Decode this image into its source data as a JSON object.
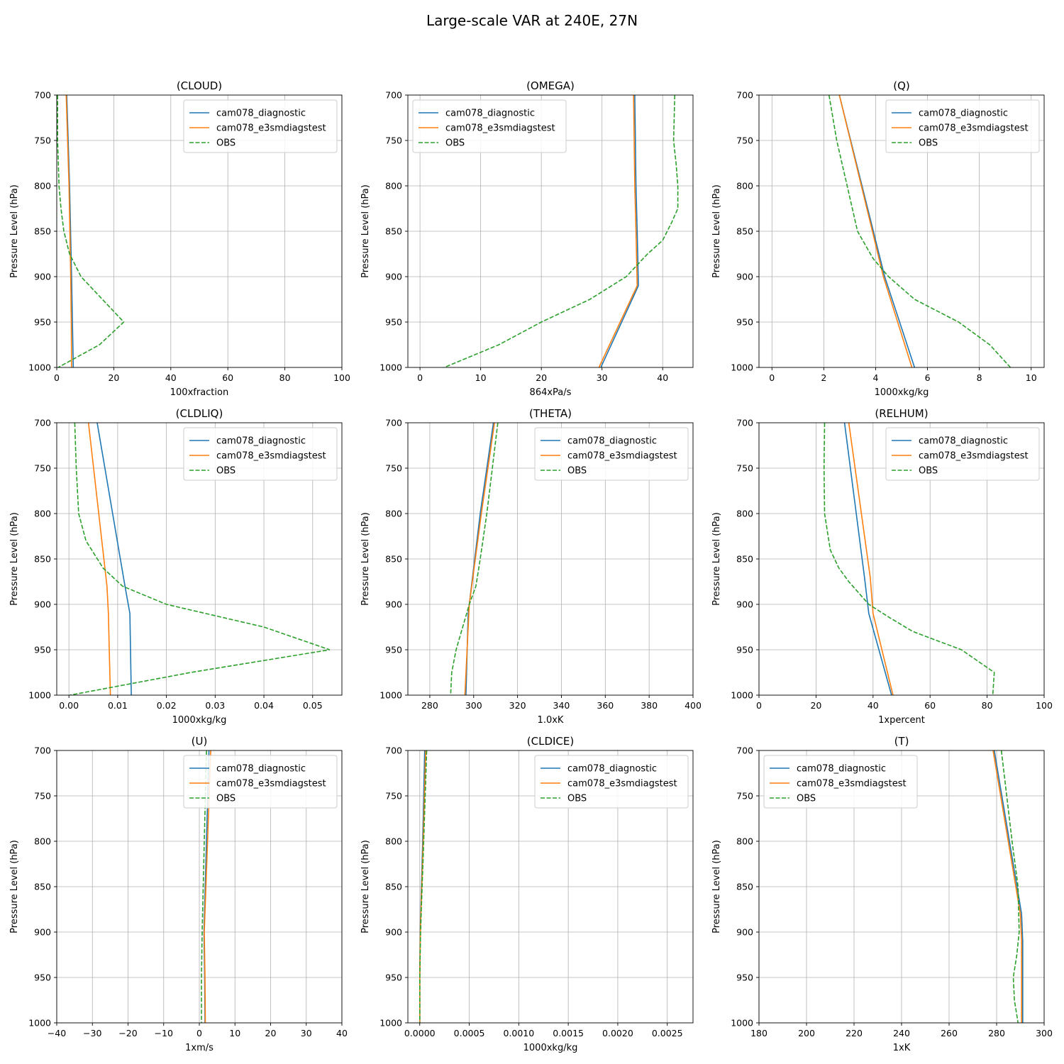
{
  "figure_title": "Large-scale VAR at 240E, 27N",
  "ylabel": "Pressure Level (hPa)",
  "ylim": [
    1000,
    700
  ],
  "yticks": [
    700,
    750,
    800,
    850,
    900,
    950,
    1000
  ],
  "series_styles": [
    {
      "name": "cam078_diagnostic",
      "color": "#1f77b4",
      "dash": "solid"
    },
    {
      "name": "cam078_e3smdiagstest",
      "color": "#ff7f0e",
      "dash": "solid"
    },
    {
      "name": "OBS",
      "color": "#2ca02c",
      "dash": "dashed"
    }
  ],
  "chart_data": [
    {
      "type": "line",
      "title": "(CLOUD)",
      "xlabel": "100xfraction",
      "ylabel": "Pressure Level (hPa)",
      "xlim": [
        0,
        100
      ],
      "xticks": [
        0,
        20,
        40,
        60,
        80,
        100
      ],
      "xticklabels": [
        "0",
        "20",
        "40",
        "60",
        "80",
        "100"
      ],
      "legend": "top-right",
      "grid": true,
      "series": [
        {
          "name": "cam078_diagnostic",
          "points": [
            [
              3.5,
              700
            ],
            [
              4.5,
              800
            ],
            [
              5.2,
              900
            ],
            [
              5.5,
              950
            ],
            [
              5.8,
              1000
            ]
          ]
        },
        {
          "name": "cam078_e3smdiagstest",
          "points": [
            [
              3.3,
              700
            ],
            [
              4.3,
              800
            ],
            [
              4.9,
              900
            ],
            [
              5.1,
              950
            ],
            [
              5.2,
              1000
            ]
          ]
        },
        {
          "name": "OBS",
          "points": [
            [
              0.3,
              700
            ],
            [
              0.3,
              750
            ],
            [
              0.8,
              800
            ],
            [
              1.5,
              825
            ],
            [
              2.5,
              850
            ],
            [
              4.5,
              875
            ],
            [
              8.5,
              900
            ],
            [
              16,
              925
            ],
            [
              23.5,
              950
            ],
            [
              15,
              975
            ],
            [
              0.5,
              1000
            ]
          ]
        }
      ]
    },
    {
      "type": "line",
      "title": "(OMEGA)",
      "xlabel": "864xPa/s",
      "ylabel": "Pressure Level (hPa)",
      "xlim": [
        -2,
        45
      ],
      "xticks": [
        0,
        10,
        20,
        30,
        40
      ],
      "xticklabels": [
        "0",
        "10",
        "20",
        "30",
        "40"
      ],
      "legend": "top-left",
      "grid": true,
      "series": [
        {
          "name": "cam078_diagnostic",
          "points": [
            [
              35.4,
              700
            ],
            [
              35.6,
              800
            ],
            [
              35.8,
              850
            ],
            [
              36.0,
              910
            ],
            [
              29.8,
              1000
            ]
          ]
        },
        {
          "name": "cam078_e3smdiagstest",
          "points": [
            [
              35.2,
              700
            ],
            [
              35.4,
              800
            ],
            [
              35.6,
              850
            ],
            [
              35.8,
              910
            ],
            [
              29.5,
              1000
            ]
          ]
        },
        {
          "name": "OBS",
          "points": [
            [
              42,
              700
            ],
            [
              41.8,
              750
            ],
            [
              42.2,
              775
            ],
            [
              42.5,
              800
            ],
            [
              42.5,
              825
            ],
            [
              41.5,
              840
            ],
            [
              40,
              860
            ],
            [
              37.5,
              875
            ],
            [
              34,
              900
            ],
            [
              28,
              925
            ],
            [
              20,
              950
            ],
            [
              13,
              975
            ],
            [
              4,
              1000
            ]
          ]
        }
      ]
    },
    {
      "type": "line",
      "title": "(Q)",
      "xlabel": "1000xkg/kg",
      "ylabel": "Pressure Level (hPa)",
      "xlim": [
        -0.5,
        10.5
      ],
      "xticks": [
        0,
        2,
        4,
        6,
        8,
        10
      ],
      "xticklabels": [
        "0",
        "2",
        "4",
        "6",
        "8",
        "10"
      ],
      "legend": "top-right",
      "grid": true,
      "series": [
        {
          "name": "cam078_diagnostic",
          "points": [
            [
              2.6,
              700
            ],
            [
              4.35,
              900
            ],
            [
              5.5,
              1000
            ]
          ]
        },
        {
          "name": "cam078_e3smdiagstest",
          "points": [
            [
              2.6,
              700
            ],
            [
              4.3,
              900
            ],
            [
              5.4,
              1000
            ]
          ]
        },
        {
          "name": "OBS",
          "points": [
            [
              2.2,
              700
            ],
            [
              2.5,
              750
            ],
            [
              2.9,
              800
            ],
            [
              3.3,
              850
            ],
            [
              3.9,
              880
            ],
            [
              4.5,
              900
            ],
            [
              5.5,
              925
            ],
            [
              7.2,
              950
            ],
            [
              8.4,
              975
            ],
            [
              9.2,
              1000
            ]
          ]
        }
      ]
    },
    {
      "type": "line",
      "title": "(CLDLIQ)",
      "xlabel": "1000xkg/kg",
      "ylabel": "Pressure Level (hPa)",
      "xlim": [
        -0.0025,
        0.056
      ],
      "xticks": [
        0,
        0.01,
        0.02,
        0.03,
        0.04,
        0.05
      ],
      "xticklabels": [
        "0.00",
        "0.01",
        "0.02",
        "0.03",
        "0.04",
        "0.05"
      ],
      "legend": "top-right",
      "grid": true,
      "series": [
        {
          "name": "cam078_diagnostic",
          "points": [
            [
              0.0058,
              700
            ],
            [
              0.0115,
              880
            ],
            [
              0.0125,
              910
            ],
            [
              0.0128,
              1000
            ]
          ]
        },
        {
          "name": "cam078_e3smdiagstest",
          "points": [
            [
              0.004,
              700
            ],
            [
              0.0078,
              880
            ],
            [
              0.0081,
              910
            ],
            [
              0.0085,
              1000
            ]
          ]
        },
        {
          "name": "OBS",
          "points": [
            [
              0.0012,
              700
            ],
            [
              0.0015,
              750
            ],
            [
              0.002,
              800
            ],
            [
              0.0035,
              830
            ],
            [
              0.007,
              860
            ],
            [
              0.011,
              880
            ],
            [
              0.02,
              900
            ],
            [
              0.04,
              925
            ],
            [
              0.0535,
              950
            ],
            [
              0.025,
              975
            ],
            [
              0.0002,
              1000
            ]
          ]
        }
      ]
    },
    {
      "type": "line",
      "title": "(THETA)",
      "xlabel": "1.0xK",
      "ylabel": "Pressure Level (hPa)",
      "xlim": [
        270,
        400
      ],
      "xticks": [
        280,
        300,
        320,
        340,
        360,
        380,
        400
      ],
      "xticklabels": [
        "280",
        "300",
        "320",
        "340",
        "360",
        "380",
        "400"
      ],
      "legend": "top-right",
      "grid": true,
      "series": [
        {
          "name": "cam078_diagnostic",
          "points": [
            [
              309,
              700
            ],
            [
              303,
              800
            ],
            [
              297.5,
              910
            ],
            [
              296.5,
              1000
            ]
          ]
        },
        {
          "name": "cam078_e3smdiagstest",
          "points": [
            [
              309.5,
              700
            ],
            [
              303.5,
              800
            ],
            [
              298,
              900
            ],
            [
              296,
              1000
            ]
          ]
        },
        {
          "name": "OBS",
          "points": [
            [
              311,
              700
            ],
            [
              308.5,
              750
            ],
            [
              306,
              800
            ],
            [
              303,
              850
            ],
            [
              301,
              880
            ],
            [
              298,
              900
            ],
            [
              295,
              925
            ],
            [
              292,
              950
            ],
            [
              290,
              975
            ],
            [
              289.5,
              1000
            ]
          ]
        }
      ]
    },
    {
      "type": "line",
      "title": "(RELHUM)",
      "xlabel": "1xpercent",
      "ylabel": "Pressure Level (hPa)",
      "xlim": [
        0,
        100
      ],
      "xticks": [
        0,
        20,
        40,
        60,
        80,
        100
      ],
      "xticklabels": [
        "0",
        "20",
        "40",
        "60",
        "80",
        "100"
      ],
      "legend": "top-right",
      "grid": true,
      "series": [
        {
          "name": "cam078_diagnostic",
          "points": [
            [
              30,
              700
            ],
            [
              37,
              870
            ],
            [
              38.5,
              910
            ],
            [
              46.5,
              1000
            ]
          ]
        },
        {
          "name": "cam078_e3smdiagstest",
          "points": [
            [
              31.5,
              700
            ],
            [
              39,
              870
            ],
            [
              40,
              910
            ],
            [
              47,
              1000
            ]
          ]
        },
        {
          "name": "OBS",
          "points": [
            [
              23,
              700
            ],
            [
              22.8,
              750
            ],
            [
              23,
              800
            ],
            [
              25,
              840
            ],
            [
              28,
              860
            ],
            [
              31.5,
              875
            ],
            [
              38.5,
              900
            ],
            [
              46,
              915
            ],
            [
              54,
              930
            ],
            [
              71,
              950
            ],
            [
              82.5,
              975
            ],
            [
              82,
              1000
            ]
          ]
        }
      ]
    },
    {
      "type": "line",
      "title": "(U)",
      "xlabel": "1xm/s",
      "ylabel": "Pressure Level (hPa)",
      "xlim": [
        -40,
        40
      ],
      "xticks": [
        -40,
        -30,
        -20,
        -10,
        0,
        10,
        20,
        30,
        40
      ],
      "xticklabels": [
        "−40",
        "−30",
        "−20",
        "−10",
        "0",
        "10",
        "20",
        "30",
        "40"
      ],
      "legend": "top-right",
      "grid": true,
      "series": [
        {
          "name": "cam078_diagnostic",
          "points": [
            [
              2.7,
              700
            ],
            [
              2.0,
              800
            ],
            [
              1.3,
              900
            ],
            [
              1.5,
              950
            ],
            [
              1.6,
              1000
            ]
          ]
        },
        {
          "name": "cam078_e3smdiagstest",
          "points": [
            [
              3.2,
              700
            ],
            [
              2.3,
              800
            ],
            [
              1.4,
              900
            ],
            [
              1.6,
              950
            ],
            [
              1.7,
              1000
            ]
          ]
        },
        {
          "name": "OBS",
          "points": [
            [
              2.0,
              700
            ],
            [
              1.4,
              800
            ],
            [
              0.8,
              900
            ],
            [
              0.6,
              950
            ],
            [
              0.6,
              1000
            ]
          ]
        }
      ]
    },
    {
      "type": "line",
      "title": "(CLDICE)",
      "xlabel": "1000xkg/kg",
      "ylabel": "Pressure Level (hPa)",
      "xlim": [
        -0.00012,
        0.00276
      ],
      "xticks": [
        0,
        0.0005,
        0.001,
        0.0015,
        0.002,
        0.0025
      ],
      "xticklabels": [
        "0.0000",
        "0.0005",
        "0.0010",
        "0.0015",
        "0.0020",
        "0.0025"
      ],
      "legend": "top-right",
      "grid": true,
      "series": [
        {
          "name": "cam078_diagnostic",
          "points": [
            [
              5e-05,
              700
            ],
            [
              3e-05,
              800
            ],
            [
              5e-06,
              900
            ],
            [
              0,
              950
            ],
            [
              0,
              1000
            ]
          ]
        },
        {
          "name": "cam078_e3smdiagstest",
          "points": [
            [
              6e-05,
              700
            ],
            [
              3.5e-05,
              800
            ],
            [
              6e-06,
              900
            ],
            [
              0,
              950
            ],
            [
              0,
              1000
            ]
          ]
        },
        {
          "name": "OBS",
          "points": [
            [
              7e-05,
              700
            ],
            [
              4e-05,
              800
            ],
            [
              8e-06,
              900
            ],
            [
              0,
              950
            ],
            [
              0,
              1000
            ]
          ]
        }
      ]
    },
    {
      "type": "line",
      "title": "(T)",
      "xlabel": "1xK",
      "ylabel": "Pressure Level (hPa)",
      "xlim": [
        180,
        300
      ],
      "xticks": [
        180,
        200,
        220,
        240,
        260,
        280,
        300
      ],
      "xticklabels": [
        "180",
        "200",
        "220",
        "240",
        "260",
        "280",
        "300"
      ],
      "legend": "top-left",
      "grid": true,
      "series": [
        {
          "name": "cam078_diagnostic",
          "points": [
            [
              279,
              700
            ],
            [
              290.5,
              880
            ],
            [
              291,
              910
            ],
            [
              291,
              1000
            ]
          ]
        },
        {
          "name": "cam078_e3smdiagstest",
          "points": [
            [
              278.5,
              700
            ],
            [
              290,
              880
            ],
            [
              290.5,
              910
            ],
            [
              290.5,
              1000
            ]
          ]
        },
        {
          "name": "OBS",
          "points": [
            [
              282,
              700
            ],
            [
              286.5,
              800
            ],
            [
              289,
              850
            ],
            [
              289.5,
              900
            ],
            [
              288.5,
              925
            ],
            [
              287,
              950
            ],
            [
              287.5,
              975
            ],
            [
              289,
              1000
            ]
          ]
        }
      ]
    }
  ]
}
